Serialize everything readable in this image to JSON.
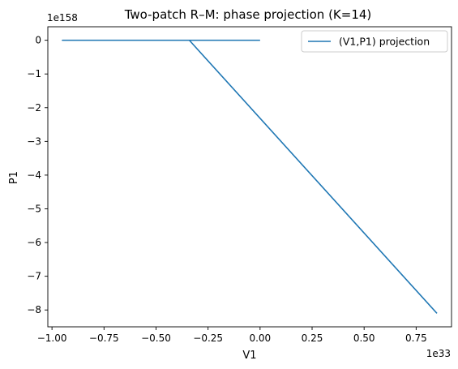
{
  "chart_data": {
    "type": "line",
    "title": "Two-patch R–M: phase projection (K=14)",
    "xlabel": "V1",
    "ylabel": "P1",
    "x_offset_text": "1e33",
    "y_offset_text": "1e158",
    "x_scale": 1e+33,
    "y_scale": 1e+158,
    "xlim": [
      -1.02,
      0.92
    ],
    "ylim": [
      -8.5,
      0.4
    ],
    "x_ticks": [
      -1.0,
      -0.75,
      -0.5,
      -0.25,
      0.0,
      0.25,
      0.5,
      0.75
    ],
    "x_tick_labels": [
      "−1.00",
      "−0.75",
      "−0.50",
      "−0.25",
      "0.00",
      "0.25",
      "0.50",
      "0.75"
    ],
    "y_ticks": [
      0,
      -1,
      -2,
      -3,
      -4,
      -5,
      -6,
      -7,
      -8
    ],
    "y_tick_labels": [
      "0",
      "−1",
      "−2",
      "−3",
      "−4",
      "−5",
      "−6",
      "−7",
      "−8"
    ],
    "grid": false,
    "legend_position": "upper right",
    "series": [
      {
        "name": "(V1,P1) projection",
        "color": "#1f77b4",
        "x": [
          0.0,
          -0.95,
          -0.34,
          0.85
        ],
        "y": [
          0.0,
          0.0,
          0.0,
          -8.1
        ]
      }
    ]
  }
}
